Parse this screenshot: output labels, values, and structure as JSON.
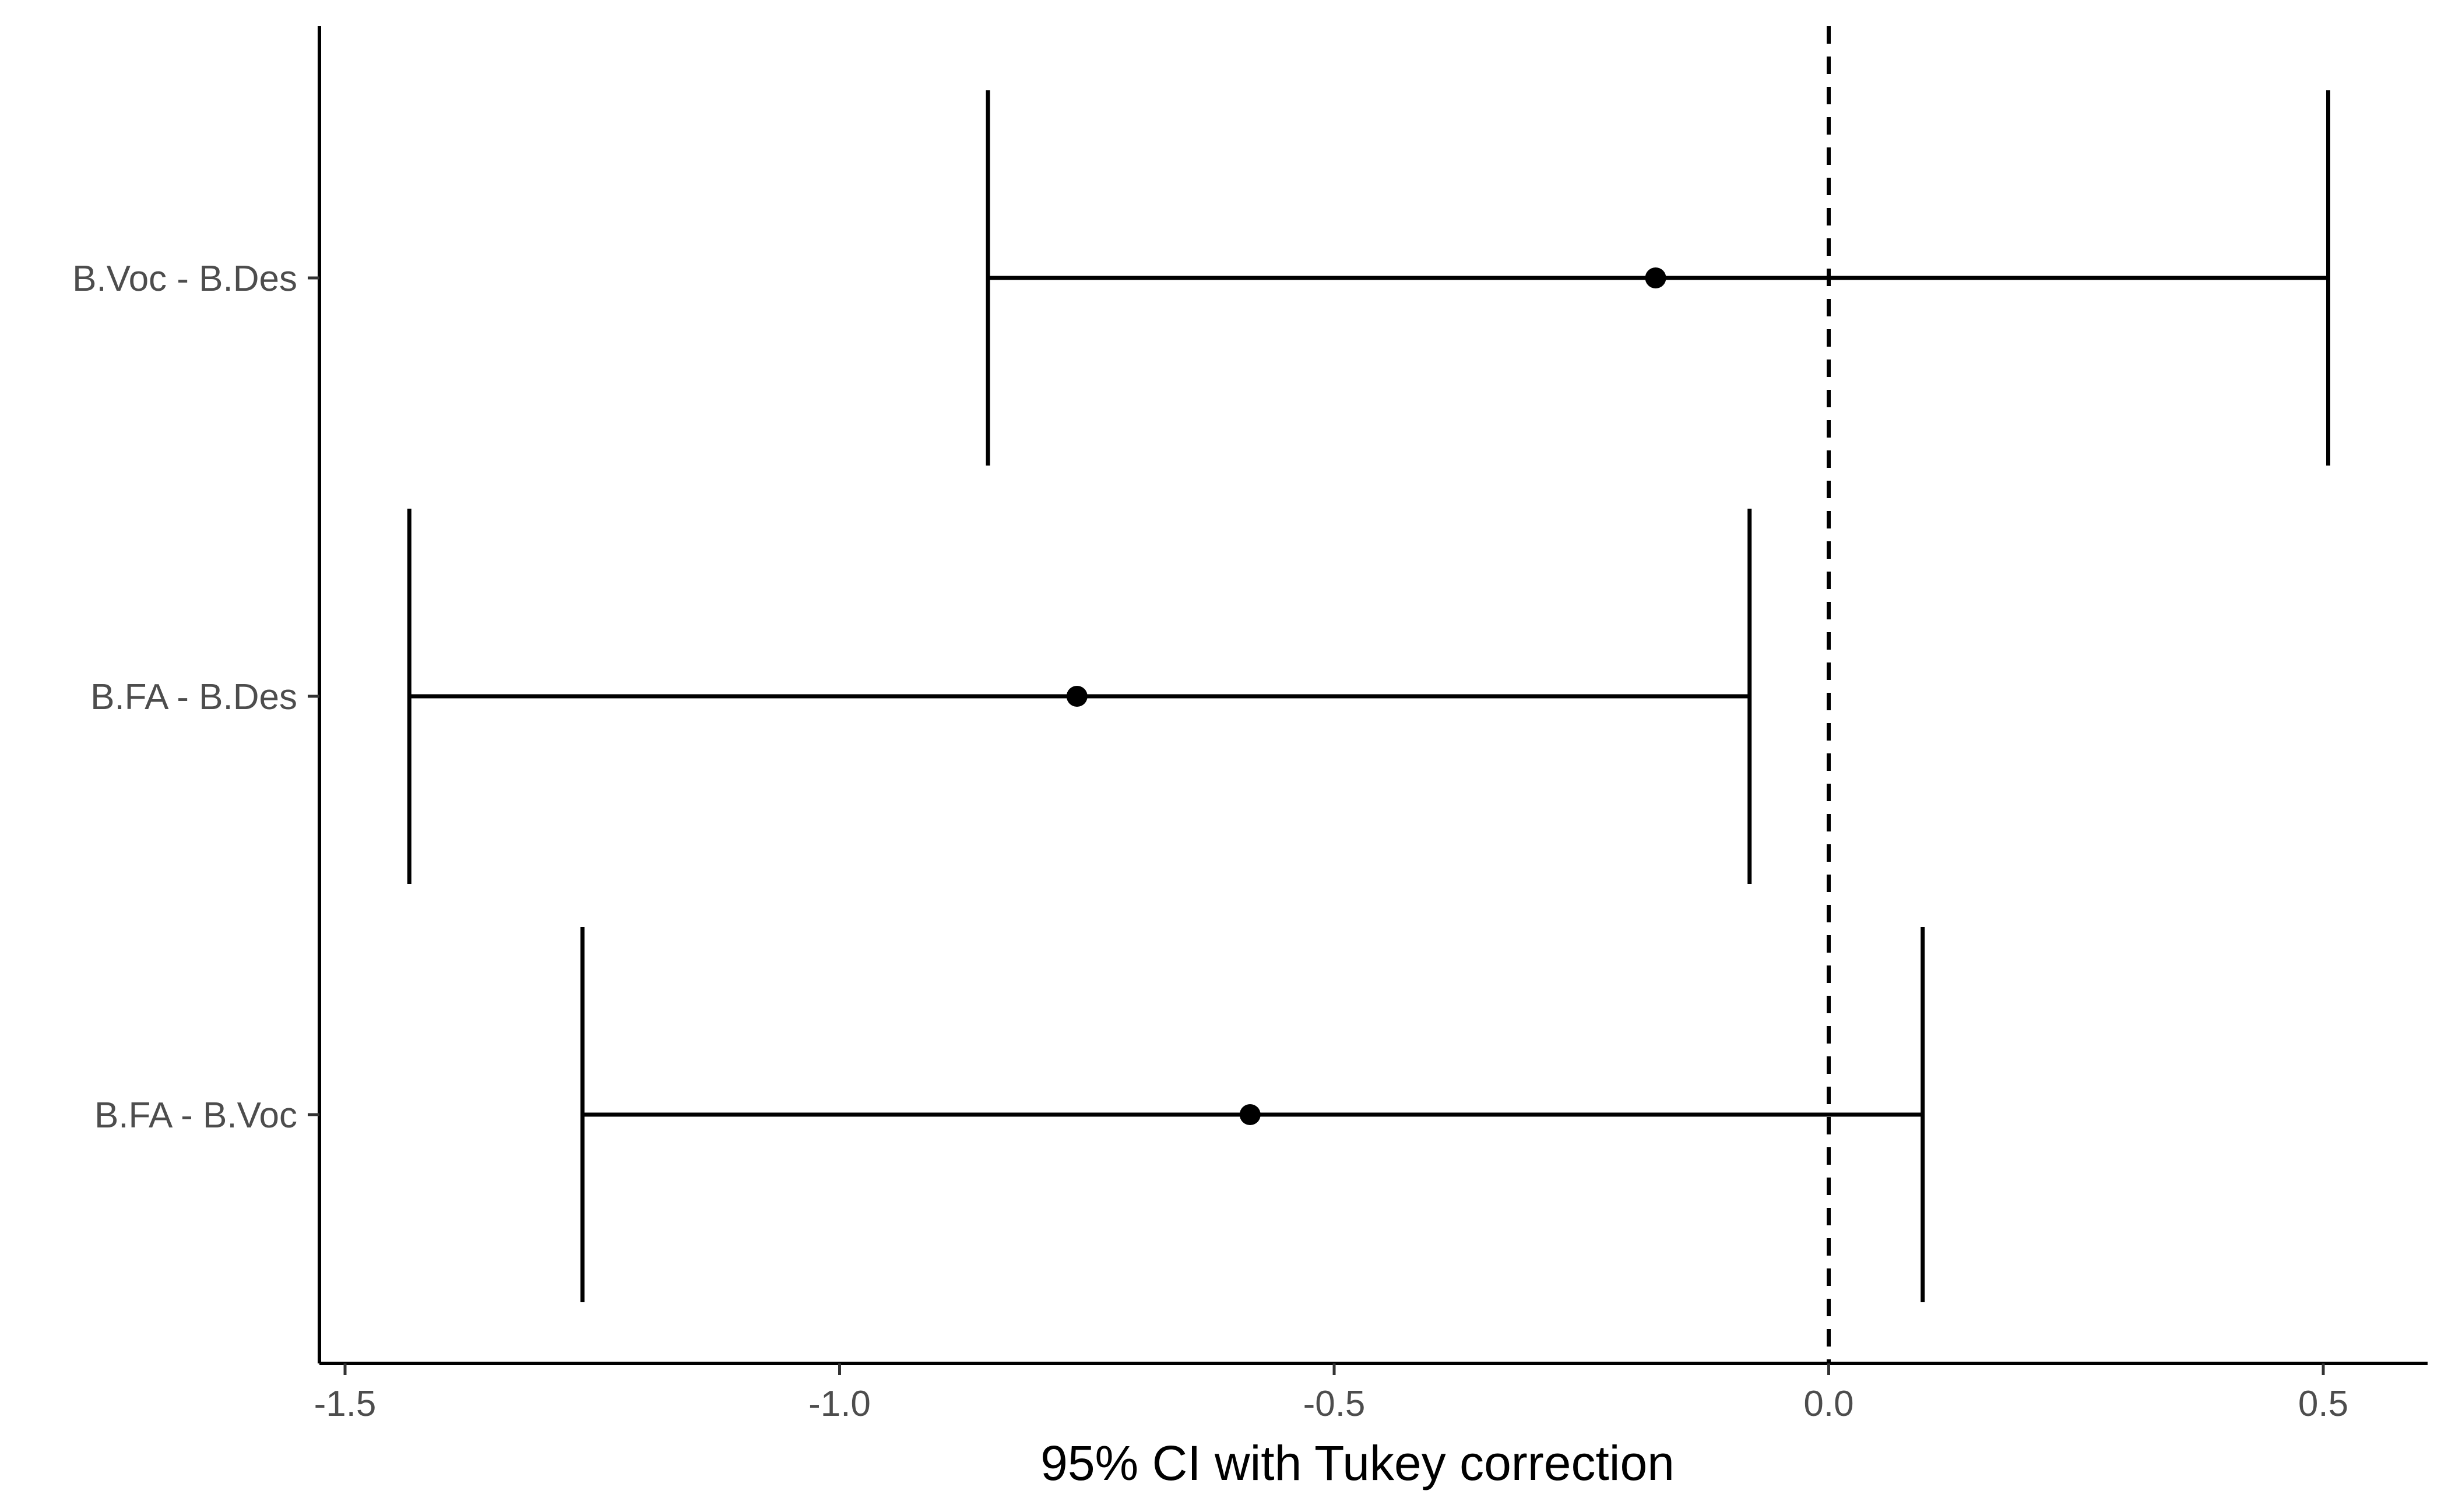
{
  "chart_data": {
    "type": "errorbar",
    "xlabel": "95% CI with Tukey correction",
    "ylabel": "",
    "xlim": [
      -1.53,
      0.6
    ],
    "x_ticks": [
      -1.5,
      -1.0,
      -0.5,
      0.0,
      0.5
    ],
    "x_tick_labels": [
      "-1.5",
      "-1.0",
      "-0.5",
      "0.0",
      "0.5"
    ],
    "reference_line": {
      "x": 0.0,
      "style": "dashed"
    },
    "grid": false,
    "categories": [
      "B.Voc - B.Des",
      "B.FA - B.Des",
      "B.FA - B.Voc"
    ],
    "estimates": [
      -0.175,
      -0.76,
      -0.585
    ],
    "lower": [
      -0.85,
      -1.435,
      -1.26
    ],
    "upper": [
      0.505,
      -0.08,
      0.095
    ],
    "colors": {
      "ink": "#000000",
      "tick_text": "#4d4d4d"
    }
  }
}
